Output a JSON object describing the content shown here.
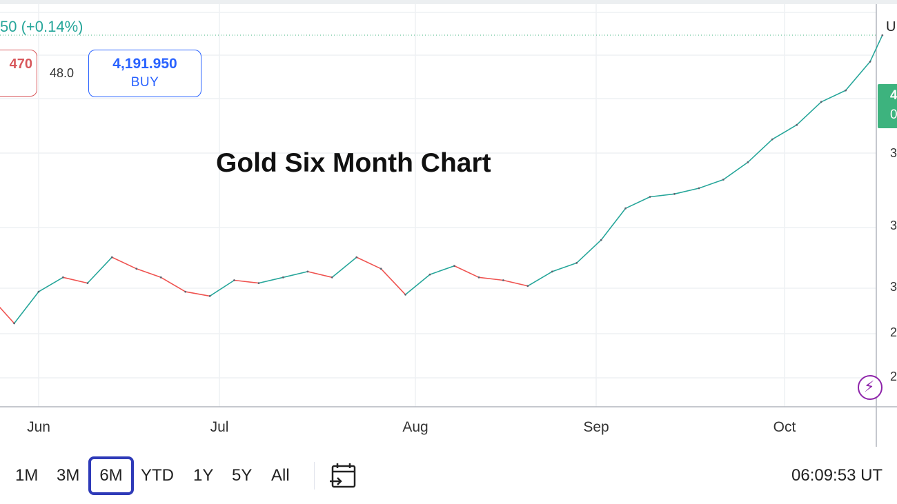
{
  "quote": {
    "change_text": "50 (+0.14%)",
    "sell_price": "470",
    "spread": "48.0",
    "buy_price": "4,191.950",
    "buy_label": "BUY"
  },
  "chart_title": "Gold Six Month Chart",
  "price_scale": {
    "scale_label": "U",
    "last_price_badge_line1": "4",
    "last_price_badge_line2": "0",
    "tick_fragments": [
      "3",
      "3",
      "3",
      "2",
      "2"
    ]
  },
  "chart_data": {
    "type": "line",
    "title": "Gold Six Month Chart",
    "xlabel": "",
    "ylabel": "",
    "x_tick_labels": [
      "Jun",
      "Jul",
      "Aug",
      "Sep",
      "Oct"
    ],
    "x": [
      "2025-05-20",
      "2025-05-24",
      "2025-05-28",
      "2025-06-01",
      "2025-06-05",
      "2025-06-09",
      "2025-06-13",
      "2025-06-17",
      "2025-06-21",
      "2025-06-25",
      "2025-06-29",
      "2025-07-03",
      "2025-07-07",
      "2025-07-11",
      "2025-07-15",
      "2025-07-19",
      "2025-07-23",
      "2025-07-27",
      "2025-07-31",
      "2025-08-04",
      "2025-08-08",
      "2025-08-12",
      "2025-08-16",
      "2025-08-20",
      "2025-08-24",
      "2025-08-28",
      "2025-09-01",
      "2025-09-05",
      "2025-09-09",
      "2025-09-13",
      "2025-09-17",
      "2025-09-21",
      "2025-09-25",
      "2025-09-29",
      "2025-10-03",
      "2025-10-07",
      "2025-10-11",
      "2025-10-15",
      "2025-10-17"
    ],
    "series": [
      {
        "values": [
          3230,
          3285,
          3190,
          3300,
          3350,
          3330,
          3420,
          3380,
          3350,
          3300,
          3285,
          3340,
          3330,
          3350,
          3370,
          3350,
          3420,
          3380,
          3290,
          3360,
          3390,
          3350,
          3340,
          3320,
          3370,
          3400,
          3480,
          3590,
          3630,
          3640,
          3660,
          3690,
          3750,
          3830,
          3880,
          3960,
          4000,
          4100,
          4192
        ]
      }
    ],
    "ylim": [
      2900,
      4300
    ],
    "grid": true,
    "legend": "none",
    "colors": {
      "up": "#26a69a",
      "down": "#ef5350",
      "last_price": "#3db37e"
    }
  },
  "toolbar": {
    "ranges": [
      "1M",
      "3M",
      "6M",
      "YTD",
      "1Y",
      "5Y",
      "All"
    ],
    "active_range": "6M",
    "calendar_icon": "calendar-goto-icon",
    "clock_text": "06:09:53 UT"
  },
  "icons": {
    "lightning": "lightning-icon"
  }
}
